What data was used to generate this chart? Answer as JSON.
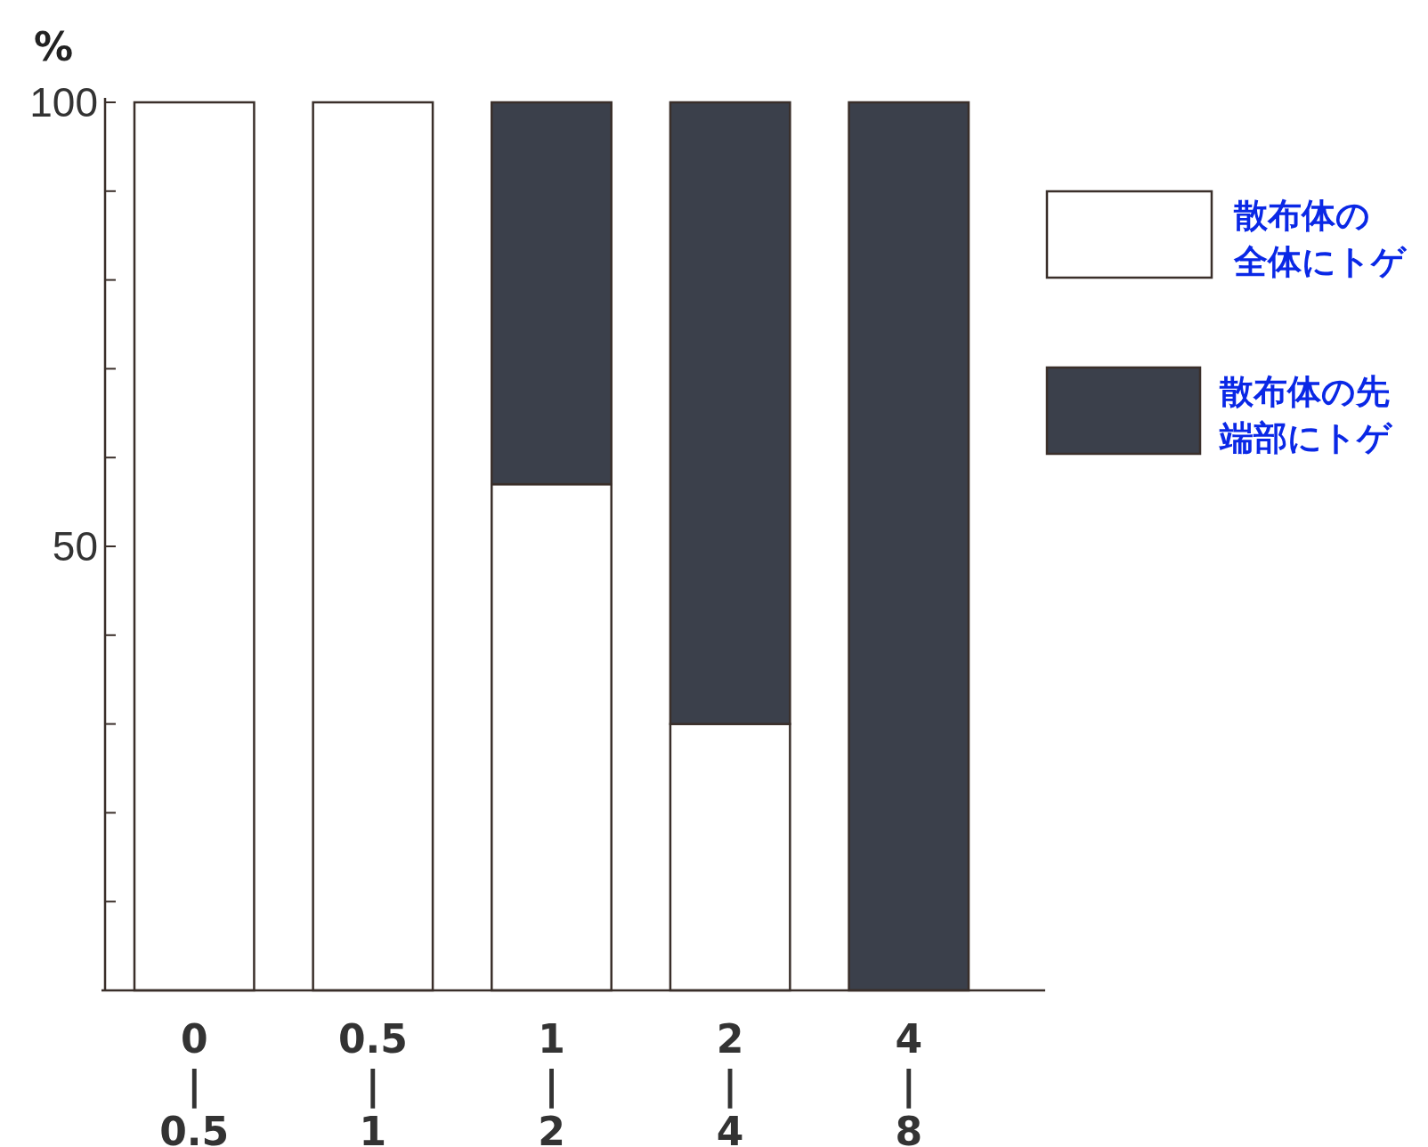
{
  "chart_data": {
    "type": "bar",
    "stacked": true,
    "ylabel": "%",
    "categories": [
      "0\n|\n0.5",
      "0.5\n|\n1",
      "1\n|\n2",
      "2\n|\n4",
      "4\n|\n8"
    ],
    "series": [
      {
        "name": "散布体の全体にトゲ",
        "color": "#ffffff",
        "values": [
          100,
          100,
          57,
          30,
          0
        ]
      },
      {
        "name": "散布体の先端部にトゲ",
        "color": "#3b404b",
        "values": [
          0,
          0,
          43,
          70,
          100
        ]
      }
    ],
    "ylim": [
      0,
      100
    ],
    "yticks": [
      {
        "value": 0,
        "label": null
      },
      {
        "value": 10,
        "label": null
      },
      {
        "value": 20,
        "label": null
      },
      {
        "value": 30,
        "label": null
      },
      {
        "value": 40,
        "label": null
      },
      50,
      {
        "value": 60,
        "label": null
      },
      {
        "value": 70,
        "label": null
      },
      {
        "value": 80,
        "label": null
      },
      {
        "value": 90,
        "label": null
      },
      100
    ],
    "legend": "right",
    "grid": false
  }
}
